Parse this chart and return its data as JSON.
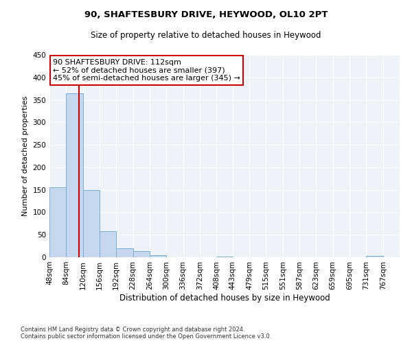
{
  "title": "90, SHAFTESBURY DRIVE, HEYWOOD, OL10 2PT",
  "subtitle": "Size of property relative to detached houses in Heywood",
  "xlabel": "Distribution of detached houses by size in Heywood",
  "ylabel": "Number of detached properties",
  "bin_labels": [
    "48sqm",
    "84sqm",
    "120sqm",
    "156sqm",
    "192sqm",
    "228sqm",
    "264sqm",
    "300sqm",
    "336sqm",
    "372sqm",
    "408sqm",
    "443sqm",
    "479sqm",
    "515sqm",
    "551sqm",
    "587sqm",
    "623sqm",
    "659sqm",
    "695sqm",
    "731sqm",
    "767sqm"
  ],
  "bar_values": [
    155,
    365,
    150,
    58,
    20,
    13,
    5,
    0,
    0,
    0,
    2,
    0,
    0,
    0,
    0,
    0,
    0,
    0,
    0,
    3,
    0
  ],
  "bar_color": "#c5d8f0",
  "bar_edge_color": "#7aaed6",
  "vline_x": 112,
  "vline_color": "#cc0000",
  "ylim": [
    0,
    450
  ],
  "yticks": [
    0,
    50,
    100,
    150,
    200,
    250,
    300,
    350,
    400,
    450
  ],
  "annotation_title": "90 SHAFTESBURY DRIVE: 112sqm",
  "annotation_line1": "← 52% of detached houses are smaller (397)",
  "annotation_line2": "45% of semi-detached houses are larger (345) →",
  "annotation_box_color": "#ffffff",
  "annotation_box_edge": "#cc0000",
  "footer_line1": "Contains HM Land Registry data © Crown copyright and database right 2024.",
  "footer_line2": "Contains public sector information licensed under the Open Government Licence v3.0.",
  "bg_color": "#ffffff",
  "plot_bg_color": "#eef2f9",
  "grid_color": "#ffffff",
  "bin_edges": [
    48,
    84,
    120,
    156,
    192,
    228,
    264,
    300,
    336,
    372,
    408,
    443,
    479,
    515,
    551,
    587,
    623,
    659,
    695,
    731,
    767,
    803
  ]
}
